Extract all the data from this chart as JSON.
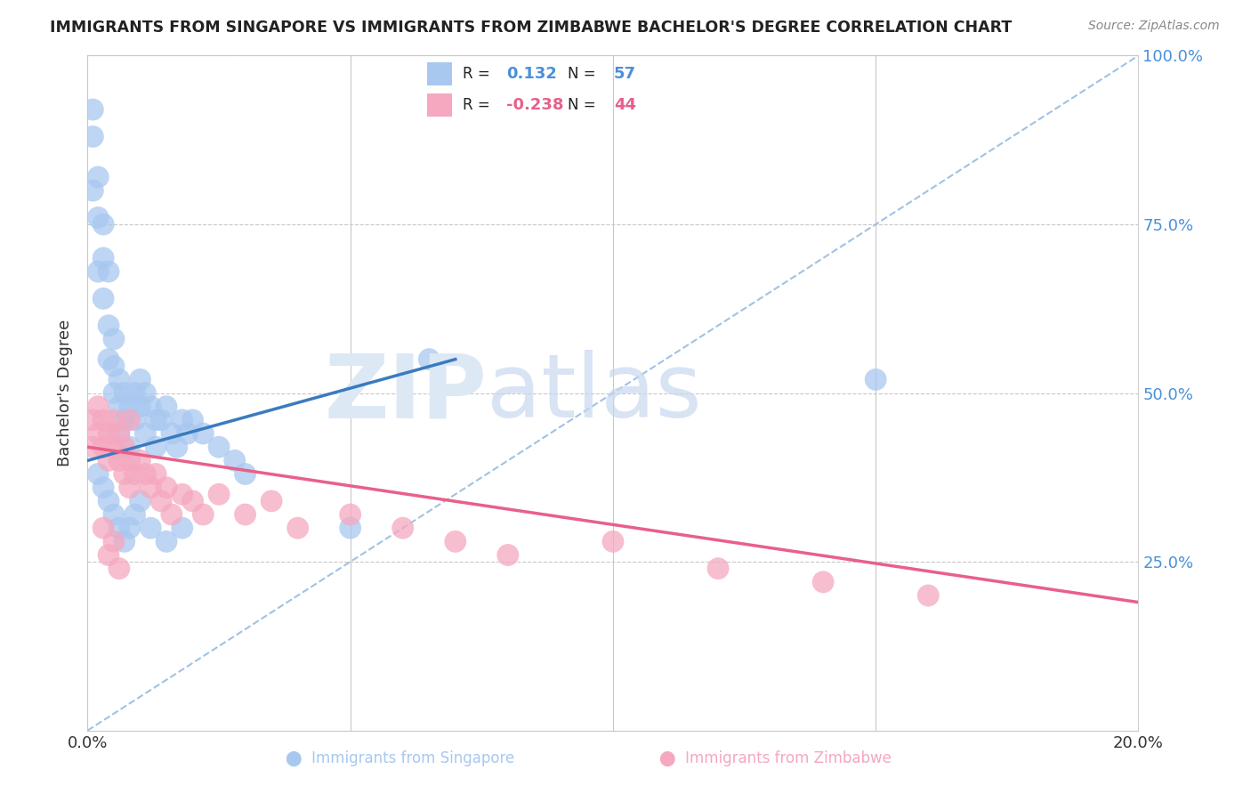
{
  "title": "IMMIGRANTS FROM SINGAPORE VS IMMIGRANTS FROM ZIMBABWE BACHELOR'S DEGREE CORRELATION CHART",
  "source": "Source: ZipAtlas.com",
  "ylabel": "Bachelor's Degree",
  "legend_r_singapore": "0.132",
  "legend_n_singapore": "57",
  "legend_r_zimbabwe": "-0.238",
  "legend_n_zimbabwe": "44",
  "singapore_color": "#a8c8f0",
  "zimbabwe_color": "#f5a8c0",
  "singapore_line_color": "#3a7bbf",
  "zimbabwe_line_color": "#e8608a",
  "diagonal_line_color": "#90b8e0",
  "sg_trend_x0": 0.0,
  "sg_trend_y0": 0.4,
  "sg_trend_x1": 0.07,
  "sg_trend_y1": 0.55,
  "zw_trend_x0": 0.0,
  "zw_trend_y0": 0.42,
  "zw_trend_x1": 0.2,
  "zw_trend_y1": 0.19,
  "xlim": [
    0.0,
    0.2
  ],
  "ylim": [
    0.0,
    1.0
  ],
  "background_color": "#ffffff",
  "sg_x": [
    0.001,
    0.001,
    0.001,
    0.002,
    0.002,
    0.002,
    0.003,
    0.003,
    0.003,
    0.004,
    0.004,
    0.004,
    0.005,
    0.005,
    0.005,
    0.006,
    0.006,
    0.006,
    0.007,
    0.007,
    0.008,
    0.008,
    0.009,
    0.009,
    0.01,
    0.01,
    0.011,
    0.011,
    0.012,
    0.013,
    0.013,
    0.014,
    0.015,
    0.016,
    0.017,
    0.018,
    0.019,
    0.02,
    0.022,
    0.025,
    0.028,
    0.03,
    0.002,
    0.003,
    0.004,
    0.005,
    0.006,
    0.007,
    0.008,
    0.009,
    0.01,
    0.012,
    0.015,
    0.018,
    0.05,
    0.065,
    0.15
  ],
  "sg_y": [
    0.92,
    0.88,
    0.8,
    0.82,
    0.76,
    0.68,
    0.75,
    0.7,
    0.64,
    0.68,
    0.6,
    0.55,
    0.58,
    0.54,
    0.5,
    0.52,
    0.48,
    0.44,
    0.5,
    0.46,
    0.48,
    0.42,
    0.5,
    0.46,
    0.52,
    0.48,
    0.5,
    0.44,
    0.48,
    0.46,
    0.42,
    0.46,
    0.48,
    0.44,
    0.42,
    0.46,
    0.44,
    0.46,
    0.44,
    0.42,
    0.4,
    0.38,
    0.38,
    0.36,
    0.34,
    0.32,
    0.3,
    0.28,
    0.3,
    0.32,
    0.34,
    0.3,
    0.28,
    0.3,
    0.3,
    0.55,
    0.52
  ],
  "zw_x": [
    0.001,
    0.001,
    0.002,
    0.002,
    0.003,
    0.003,
    0.004,
    0.004,
    0.005,
    0.005,
    0.006,
    0.006,
    0.007,
    0.007,
    0.008,
    0.008,
    0.009,
    0.01,
    0.011,
    0.012,
    0.013,
    0.014,
    0.015,
    0.016,
    0.018,
    0.02,
    0.022,
    0.025,
    0.03,
    0.035,
    0.04,
    0.05,
    0.06,
    0.07,
    0.08,
    0.1,
    0.12,
    0.14,
    0.16,
    0.003,
    0.004,
    0.005,
    0.006,
    0.008
  ],
  "zw_y": [
    0.46,
    0.42,
    0.48,
    0.44,
    0.46,
    0.42,
    0.44,
    0.4,
    0.46,
    0.42,
    0.44,
    0.4,
    0.42,
    0.38,
    0.4,
    0.36,
    0.38,
    0.4,
    0.38,
    0.36,
    0.38,
    0.34,
    0.36,
    0.32,
    0.35,
    0.34,
    0.32,
    0.35,
    0.32,
    0.34,
    0.3,
    0.32,
    0.3,
    0.28,
    0.26,
    0.28,
    0.24,
    0.22,
    0.2,
    0.3,
    0.26,
    0.28,
    0.24,
    0.46
  ]
}
